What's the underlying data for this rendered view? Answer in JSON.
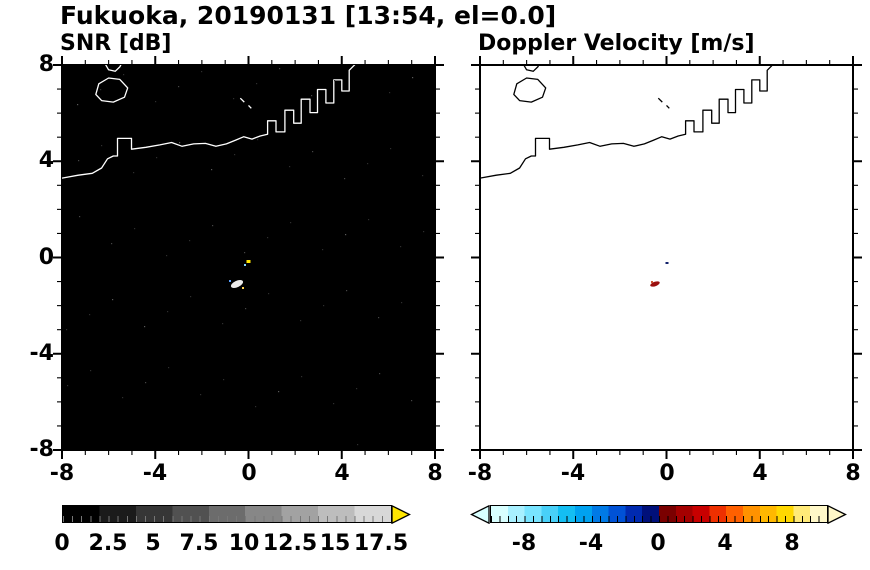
{
  "figure_title": "Fukuoka, 20190131 [13:54, el=0.0]",
  "panels": [
    {
      "title": "SNR [dB]"
    },
    {
      "title": "Doppler Velocity [m/s]"
    }
  ],
  "axes": {
    "xtick_labels": [
      "-8",
      "-4",
      "0",
      "4",
      "8"
    ],
    "ytick_labels": [
      "8",
      "4",
      "0",
      "-4",
      "-8"
    ]
  },
  "colorbars": {
    "snr": {
      "tick_labels": [
        "0",
        "2.5",
        "5",
        "7.5",
        "10",
        "12.5",
        "15",
        "17.5"
      ],
      "over_arrow_color": "#ffe600",
      "colormap": "grayscale black-to-light-gray"
    },
    "velocity": {
      "tick_labels": [
        "-8",
        "-4",
        "0",
        "4",
        "8"
      ],
      "under_arrow_color": "#d8ffff",
      "over_arrow_color": "#fff8c8",
      "colormap": "cyan-blue-navy / dark-red-orange-yellow diverging"
    }
  },
  "chart_data": [
    {
      "type": "heatmap",
      "title": "SNR [dB]",
      "xlim": [
        -8,
        8
      ],
      "ylim": [
        -8,
        8
      ],
      "xticks": [
        -8,
        -4,
        0,
        4,
        8
      ],
      "yticks": [
        -8,
        -4,
        0,
        4,
        8
      ],
      "background": "black (no-signal SNR near 0 dB over almost entire domain, sparse faint speckle noise)",
      "colorbar": {
        "range": [
          0,
          18
        ],
        "ticks": [
          0,
          2.5,
          5,
          7.5,
          10,
          12.5,
          15,
          17.5
        ],
        "colormap": "grayscale",
        "over_arrow": "yellow"
      },
      "overlays": [
        "Fukuoka / Hakata Bay coastline drawn in white across upper half, with island near upper-left and zigzag harbor piers upper-right"
      ],
      "echoes": [
        {
          "x": 0.0,
          "y": -0.3,
          "approx_value_dB": 16,
          "note": "tiny yellow high-SNR speck"
        },
        {
          "x": -0.5,
          "y": -1.1,
          "approx_value_dB": 12,
          "note": "small bright white/blue echo cluster"
        }
      ]
    },
    {
      "type": "heatmap",
      "title": "Doppler Velocity [m/s]",
      "xlim": [
        -8,
        8
      ],
      "ylim": [
        -8,
        8
      ],
      "xticks": [
        -8,
        -4,
        0,
        4,
        8
      ],
      "yticks": [
        -8,
        -4,
        0,
        4,
        8
      ],
      "background": "white (no data everywhere except tiny echo near center)",
      "colorbar": {
        "range": [
          -10,
          10
        ],
        "ticks": [
          -8,
          -4,
          0,
          4,
          8
        ],
        "colormap": "light-cyan to blue to navy (negative), dark-red to orange to pale-yellow (positive)"
      },
      "overlays": [
        "Fukuoka / Hakata Bay coastline drawn in black across upper half, same geometry as SNR panel"
      ],
      "echoes": [
        {
          "x": -0.5,
          "y": -1.1,
          "approx_value_ms": 2,
          "note": "small dark-red echo (positive velocity)"
        },
        {
          "x": 0.0,
          "y": -0.3,
          "approx_value_ms": -1,
          "note": "tiny dark navy speck"
        }
      ]
    }
  ]
}
